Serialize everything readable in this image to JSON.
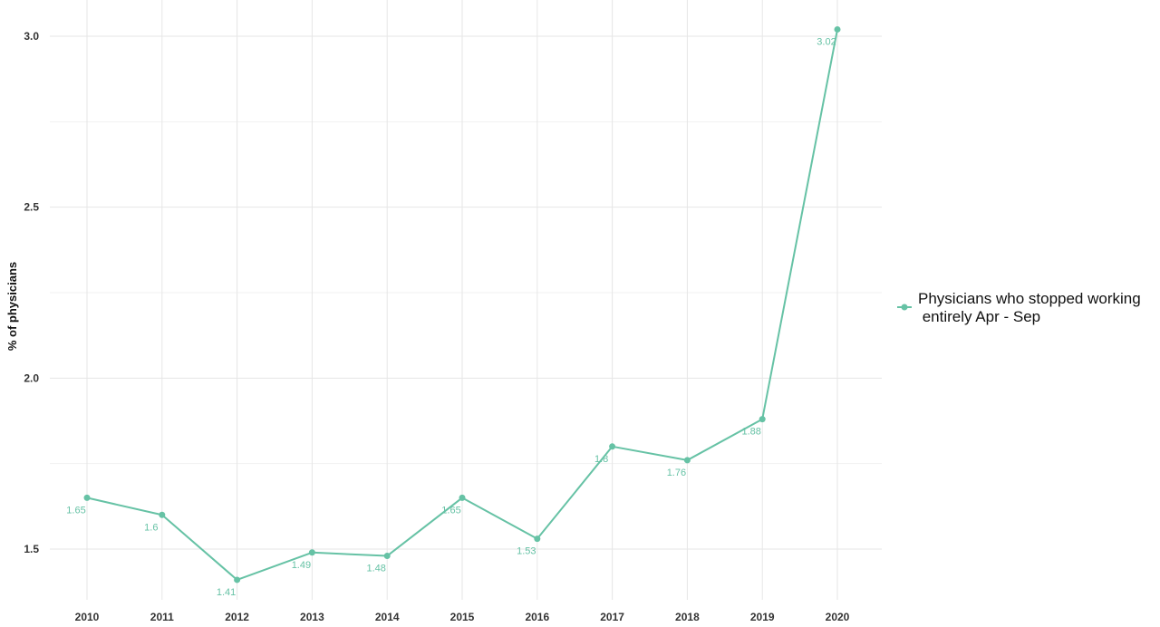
{
  "chart_data": {
    "type": "line",
    "ylabel": "% of physicians",
    "xlabel": "",
    "x": [
      "2010",
      "2011",
      "2012",
      "2013",
      "2014",
      "2015",
      "2016",
      "2017",
      "2018",
      "2019",
      "2020"
    ],
    "ylim": [
      1.34,
      3.06
    ],
    "yticks": [
      1.5,
      2.0,
      2.5,
      3.0
    ],
    "ytick_labels": [
      "1.5",
      "2.0",
      "2.5",
      "3.0"
    ],
    "grid": true,
    "legend_position": "right",
    "color": "#66c2a5",
    "series": [
      {
        "name": "Physicians who stopped working entirely Apr - Sep",
        "legend_lines": [
          "Physicians who stopped working",
          " entirely Apr - Sep"
        ],
        "values": [
          1.65,
          1.6,
          1.41,
          1.49,
          1.48,
          1.65,
          1.53,
          1.8,
          1.76,
          1.88,
          3.02
        ],
        "labels": [
          "1.65",
          "1.6",
          "1.41",
          "1.49",
          "1.48",
          "1.65",
          "1.53",
          "1.8",
          "1.76",
          "1.88",
          "3.02"
        ]
      }
    ]
  }
}
